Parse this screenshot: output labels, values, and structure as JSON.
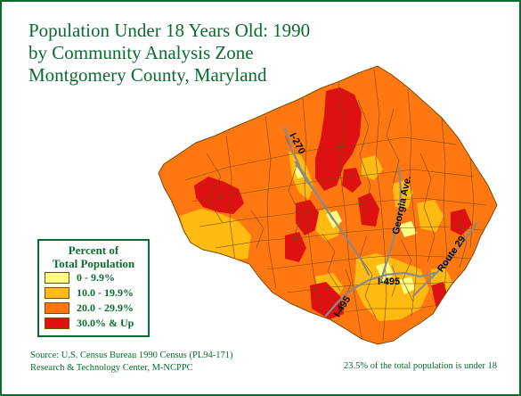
{
  "title": {
    "line1": "Population Under 18 Years Old: 1990",
    "line2": "by Community Analysis Zone",
    "line3": "Montgomery County, Maryland"
  },
  "legend": {
    "title_line1": "Percent of",
    "title_line2": "Total Population",
    "items": [
      {
        "label": "0 - 9.9%",
        "color": "#ffff88"
      },
      {
        "label": "10.0 - 19.9%",
        "color": "#ffbb11"
      },
      {
        "label": "20.0 - 29.9%",
        "color": "#ff7711"
      },
      {
        "label": "30.0% & Up",
        "color": "#dd1111"
      }
    ]
  },
  "roads": {
    "i270": "I-270",
    "georgia": "Georgia Ave.",
    "route29": "Route 29",
    "i495_east": "I-495",
    "i495_west": "I-495"
  },
  "source": {
    "line1": "Source: U.S. Census Bureau 1990 Census (PL94-171)",
    "line2": "Research & Technology Center, M-NCPPC"
  },
  "footnote": "23.5% of the total population is under 18",
  "colors": {
    "accent": "#0a6b2f",
    "boundary": "#7a4a00",
    "road": "#8a8a8a",
    "county_fill": "#ff7711"
  }
}
